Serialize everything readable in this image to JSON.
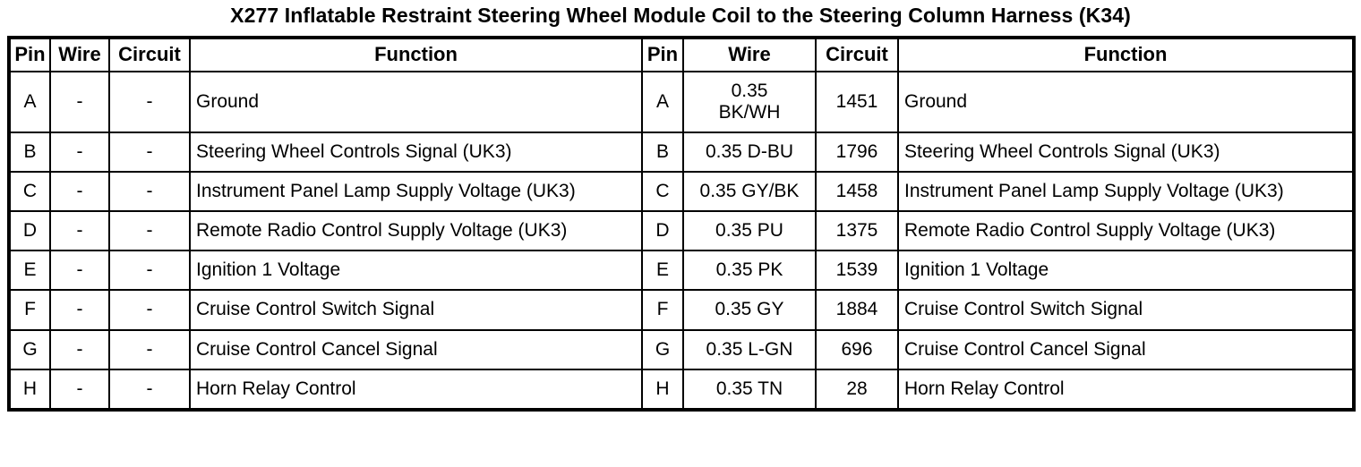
{
  "title": "X277 Inflatable Restraint Steering Wheel Module Coil to the Steering Column Harness (K34)",
  "connector_table": {
    "column_headers": [
      "Pin",
      "Wire",
      "Circuit",
      "Function",
      "Pin",
      "Wire",
      "Circuit",
      "Function"
    ],
    "rows": [
      [
        "A",
        "-",
        "-",
        "Ground",
        "A",
        "0.35\nBK/WH",
        "1451",
        "Ground"
      ],
      [
        "B",
        "-",
        "-",
        "Steering Wheel Controls Signal (UK3)",
        "B",
        "0.35 D-BU",
        "1796",
        "Steering Wheel Controls Signal (UK3)"
      ],
      [
        "C",
        "-",
        "-",
        "Instrument Panel Lamp Supply Voltage (UK3)",
        "C",
        "0.35 GY/BK",
        "1458",
        "Instrument Panel Lamp Supply Voltage (UK3)"
      ],
      [
        "D",
        "-",
        "-",
        "Remote Radio Control Supply Voltage (UK3)",
        "D",
        "0.35 PU",
        "1375",
        "Remote Radio Control Supply Voltage (UK3)"
      ],
      [
        "E",
        "-",
        "-",
        "Ignition 1 Voltage",
        "E",
        "0.35 PK",
        "1539",
        "Ignition 1 Voltage"
      ],
      [
        "F",
        "-",
        "-",
        "Cruise Control Switch Signal",
        "F",
        "0.35 GY",
        "1884",
        "Cruise Control Switch Signal"
      ],
      [
        "G",
        "-",
        "-",
        "Cruise Control Cancel Signal",
        "G",
        "0.35 L-GN",
        "696",
        "Cruise Control Cancel Signal"
      ],
      [
        "H",
        "-",
        "-",
        "Horn Relay Control",
        "H",
        "0.35 TN",
        "28",
        "Horn Relay Control"
      ]
    ]
  },
  "colors": {
    "text": "#000000",
    "background": "#ffffff",
    "border": "#000000"
  }
}
